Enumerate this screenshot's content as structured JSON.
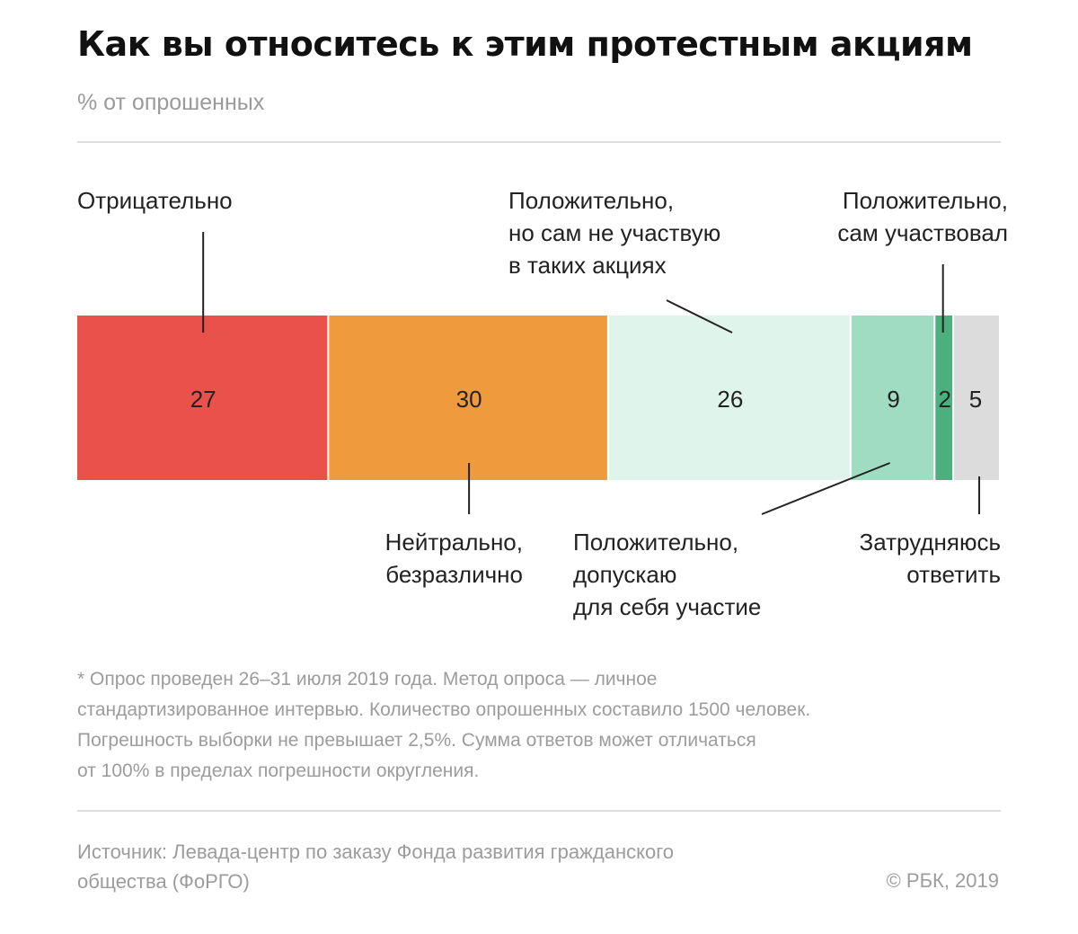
{
  "chart_data": {
    "type": "bar",
    "stacked": true,
    "orientation": "horizontal",
    "title": "Как вы относитесь к этим протестным акциям",
    "subtitle": "% от опрошенных",
    "categories": [
      "Отрицательно",
      "Нейтрально, безразлично",
      "Положительно, но сам не участвую в таких акциях",
      "Положительно, допускаю для себя участие",
      "Положительно, сам участвовал",
      "Затрудняюсь ответить"
    ],
    "values": [
      27,
      30,
      26,
      9,
      2,
      5
    ],
    "colors": [
      "#e8524a",
      "#ef9a3c",
      "#dff5ec",
      "#9fdcc2",
      "#4bb07e",
      "#dcdcdc"
    ],
    "label_lines": [
      [
        "Отрицательно"
      ],
      [
        "Нейтрально,",
        "безразлично"
      ],
      [
        "Положительно,",
        "но сам не участвую",
        "в таких акциях"
      ],
      [
        "Положительно,",
        "допускаю",
        "для себя участие"
      ],
      [
        "Положительно,",
        "сам участвовал"
      ],
      [
        "Затрудняюсь",
        "ответить"
      ]
    ],
    "label_positions": [
      "top",
      "bottom",
      "top",
      "bottom",
      "top",
      "bottom"
    ],
    "footnote": [
      "* Опрос проведен 26–31 июля 2019 года. Метод опроса — личное",
      "стандартизированное интервью. Количество опрошенных составило 1500 человек.",
      "Погрешность выборки не превышает 2,5%. Сумма ответов может отличаться",
      "от 100% в пределах погрешности округления."
    ],
    "source": [
      "Источник: Левада-центр по заказу Фонда развития гражданского",
      "общества (ФоРГО)"
    ],
    "copyright": "© РБК, 2019"
  }
}
